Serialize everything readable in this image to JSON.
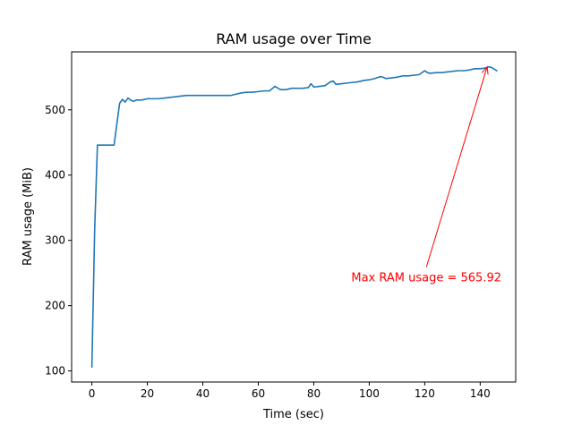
{
  "chart_data": {
    "type": "line",
    "title": "RAM usage over Time",
    "xlabel": "Time (sec)",
    "ylabel": "RAM usage (MiB)",
    "xlim": [
      -7.3,
      152.8
    ],
    "ylim": [
      83.0,
      588.8
    ],
    "xticks": [
      0,
      20,
      40,
      60,
      80,
      100,
      120,
      140
    ],
    "yticks": [
      100,
      200,
      300,
      400,
      500
    ],
    "grid": false,
    "legend": "none",
    "series": [
      {
        "color": "#1f77b4",
        "x": [
          0,
          1,
          2,
          4,
          6,
          8,
          10,
          11,
          12,
          13,
          14,
          15,
          16,
          18,
          20,
          22,
          24,
          26,
          28,
          30,
          32,
          34,
          36,
          38,
          40,
          42,
          44,
          46,
          48,
          50,
          52,
          54,
          56,
          58,
          60,
          62,
          64,
          66,
          68,
          70,
          72,
          74,
          76,
          78,
          79,
          80,
          82,
          84,
          86,
          87,
          88,
          90,
          92,
          94,
          96,
          98,
          100,
          102,
          104,
          105,
          106,
          108,
          110,
          112,
          114,
          116,
          118,
          120,
          121,
          122,
          124,
          126,
          128,
          130,
          132,
          134,
          136,
          138,
          140,
          142,
          143,
          144,
          146
        ],
        "y": [
          106,
          315,
          446,
          446,
          446,
          446,
          510,
          516,
          512,
          518,
          515,
          513,
          515,
          515,
          517,
          517,
          517,
          518,
          519,
          520,
          521,
          522,
          522,
          522,
          522,
          522,
          522,
          522,
          522,
          522,
          524,
          526,
          527,
          527,
          528,
          529,
          529,
          536,
          531,
          531,
          533,
          533,
          533,
          534,
          540,
          535,
          536,
          537,
          543,
          544,
          539,
          540,
          541,
          542,
          543,
          545,
          546,
          548,
          551,
          550,
          548,
          549,
          550,
          552,
          552,
          553,
          554,
          560,
          557,
          556,
          557,
          557,
          558,
          559,
          560,
          560,
          561,
          563,
          563,
          564,
          565.92,
          565,
          560
        ]
      }
    ],
    "annotation": {
      "text": "Max RAM usage = 565.92",
      "color": "#ff0000",
      "point": [
        142.5,
        565.92
      ],
      "text_anchor": [
        120.6,
        270
      ]
    }
  }
}
